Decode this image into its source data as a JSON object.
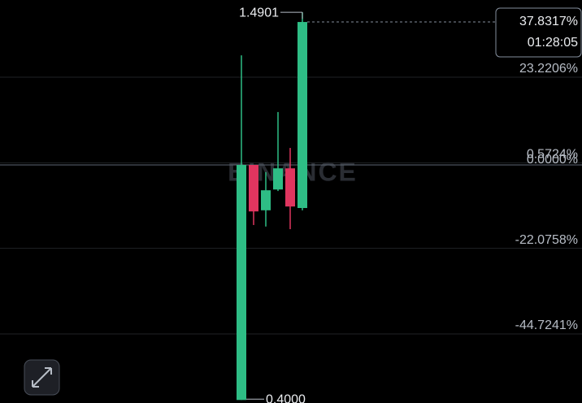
{
  "chart_data": {
    "type": "candlestick",
    "watermark": "BINANCE",
    "up_color": "#2ebd85",
    "down_color": "#e0355f",
    "candles": [
      {
        "open": -62.2,
        "high": 29.0,
        "low": -62.2,
        "close": 0
      },
      {
        "open": 0,
        "high": 0,
        "low": -15.9,
        "close": -12.3
      },
      {
        "open": -12.0,
        "high": -1.9,
        "low": -16.3,
        "close": -6.7
      },
      {
        "open": -6.5,
        "high": 14.0,
        "low": -6.9,
        "close": -0.9
      },
      {
        "open": -0.9,
        "high": 4.5,
        "low": -17.0,
        "close": -11.0
      },
      {
        "open": -11.4,
        "high": 40.4,
        "low": -12.0,
        "close": 37.8317
      }
    ],
    "ylim": [
      -63.0,
      43.65
    ],
    "yticks": [
      {
        "value": 23.2206,
        "label": "23.2206%"
      },
      {
        "value": 0.5724,
        "label": "0.5724%"
      },
      {
        "value": 0,
        "label": "0.0000%"
      },
      {
        "value": -22.0758,
        "label": "-22.0758%"
      },
      {
        "value": -44.7241,
        "label": "-44.7241%"
      }
    ],
    "grid": true,
    "current_price": {
      "value": 37.8317,
      "label": "37.8317%"
    },
    "countdown": "01:28:05",
    "high_label": "1.4901",
    "low_label": "0.4000"
  }
}
